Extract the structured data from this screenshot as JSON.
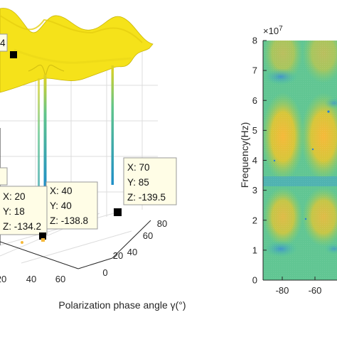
{
  "chart_data": [
    {
      "type": "surface3d",
      "xlabel": "Polarization phase angle γ(°)",
      "x_ticks": [
        "0",
        "20",
        "40",
        "60",
        "80"
      ],
      "y_ticks": [
        "0",
        "20",
        "40",
        "60",
        "80"
      ],
      "colormap": "parula",
      "grid": true,
      "data_tips": [
        {
          "x": "40",
          "y": "40",
          "z": "-138.8",
          "label_x": "X: 40",
          "label_y": "Y: 40",
          "label_z": "Z: -138.8"
        },
        {
          "x": "20",
          "y": "18",
          "z": "-134.2",
          "label_x": "X: 20",
          "label_y": "Y: 18",
          "label_z": "Z: -134.2"
        },
        {
          "x": "70",
          "y": "85",
          "z": "-139.5",
          "label_x": "X: 70",
          "label_y": "Y: 85",
          "label_z": "Z: -139.5"
        }
      ],
      "partial_tip_text": "4"
    },
    {
      "type": "heatmap",
      "ylabel": "Frequency(Hz)",
      "y_exponent_label": "×10",
      "y_exponent_power": "7",
      "y_ticks": [
        "0",
        "1",
        "2",
        "3",
        "4",
        "5",
        "6",
        "7",
        "8"
      ],
      "ylim": [
        0,
        8
      ],
      "x_ticks": [
        "-80",
        "-60"
      ],
      "colormap": "parula"
    }
  ],
  "colors": {
    "surface_yellow": "#f5e21a",
    "surface_edge": "#c9b60c",
    "heat_low": "#3d8fd1",
    "heat_mid": "#49c4a4",
    "heat_high": "#f6b93a",
    "axis": "#262626",
    "grid": "#dcdcdc"
  }
}
